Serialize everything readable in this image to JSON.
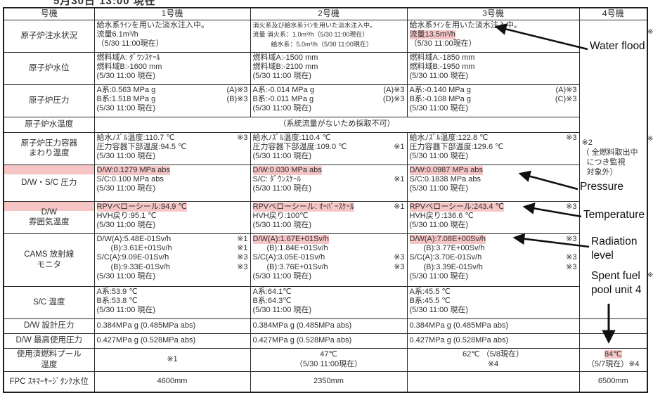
{
  "title": "5月30日 13:00 現在",
  "colors": {
    "highlight": "#f6c6c6",
    "border": "#2a2a2a",
    "arrow": "#101010"
  },
  "header": [
    "号機",
    "1号機",
    "2号機",
    "3号機",
    "4号機"
  ],
  "rows": [
    {
      "id": "injection",
      "label": [
        "原子炉注水状況"
      ],
      "u4": "note",
      "cells": [
        {
          "lines": [
            {
              "t": "給水系ﾗｲﾝを用いた淡水注入中。"
            },
            {
              "t": "流量6.1m³/h"
            },
            {
              "t": "（5/30 11:00現在）"
            }
          ]
        },
        {
          "small": true,
          "lines": [
            {
              "t": "消火系及び給水系ﾗｲﾝを用いた淡水注入中。"
            },
            {
              "t": "流量 消火系：1.0m³/h（5/30 11:00現在）"
            },
            {
              "t": "給水系：5.0m³/h（5/30 11:00現在）",
              "ind": 2
            }
          ]
        },
        {
          "lines": [
            {
              "t": "給水系ﾗｲﾝを用いた淡水注入中。"
            },
            {
              "t": "流量13.5m³/h",
              "hl": true
            },
            {
              "t": "（5/30 11:00現在）"
            }
          ]
        }
      ]
    },
    {
      "id": "water-level",
      "label": [
        "原子炉水位"
      ],
      "cells": [
        {
          "lines": [
            {
              "t": "燃料域A: ﾀﾞｳﾝｽｹｰﾙ"
            },
            {
              "t": "燃料域B:-1600 mm"
            },
            {
              "t": "(5/30 11:00 現在)"
            }
          ]
        },
        {
          "lines": [
            {
              "t": "燃料域A:-1500 mm"
            },
            {
              "t": "燃料域B:-2100 mm"
            },
            {
              "t": "(5/30 11:00 現在)"
            }
          ]
        },
        {
          "lines": [
            {
              "t": "燃料域A:-1850 mm"
            },
            {
              "t": "燃料域B:-1950 mm"
            },
            {
              "t": "(5/30 11:00 現在)"
            }
          ]
        }
      ]
    },
    {
      "id": "reactor-pressure",
      "label": [
        "原子炉圧力"
      ],
      "cells": [
        {
          "lines": [
            {
              "t": "A系:0.563 MPa g",
              "m": "(A)※3"
            },
            {
              "t": "B系:1.518 MPa g",
              "m": "(B)※3"
            },
            {
              "t": "(5/30 11:00 現在)"
            }
          ]
        },
        {
          "lines": [
            {
              "t": "A系:-0.014 MPa g",
              "m": "(A)※3"
            },
            {
              "t": "B系:-0.011 MPa g",
              "m": "(D)※3"
            },
            {
              "t": "(5/30 11:00 現在)"
            }
          ]
        },
        {
          "lines": [
            {
              "t": "A系:-0.140 MPa g",
              "m": "(A)※3"
            },
            {
              "t": "B系:-0.108 MPa g",
              "m": "(C)※3"
            },
            {
              "t": "(5/30 11:00 現在)"
            }
          ]
        }
      ]
    },
    {
      "id": "water-temp",
      "label": [
        "原子炉水温度"
      ],
      "span_text": "（系統流量がないため採取不可）"
    },
    {
      "id": "rpv-temp",
      "label": [
        "原子炉圧力容器",
        "まわり温度"
      ],
      "cells": [
        {
          "lines": [
            {
              "t": "給水ﾉｽﾞﾙ温度:110.7 ℃",
              "m": "※3"
            },
            {
              "t": "圧力容器下部温度:94.5 ℃"
            },
            {
              "t": "(5/30 11:00 現在)"
            }
          ]
        },
        {
          "lines": [
            {
              "t": "給水ﾉｽﾞﾙ温度:110.4 ℃"
            },
            {
              "t": "圧力容器下部温度:109.0 ℃",
              "m": "※1"
            },
            {
              "t": "(5/30 11:00 現在)"
            }
          ]
        },
        {
          "lines": [
            {
              "t": "給水ﾉｽﾞﾙ温度:122.8 ℃",
              "m": "※3"
            },
            {
              "t": "圧力容器下部温度:129.6 ℃"
            },
            {
              "t": "(5/30 11:00 現在)"
            }
          ]
        }
      ]
    },
    {
      "id": "dw-sc-pressure",
      "label": [
        "D/W・S/C 圧力"
      ],
      "stripe": true,
      "cells": [
        {
          "lines": [
            {
              "t": "D/W:0.1279 MPa abs",
              "hl": true
            },
            {
              "t": "S/C:0.100 MPa abs"
            },
            {
              "t": "(5/30 11:00 現在)"
            }
          ]
        },
        {
          "lines": [
            {
              "t": "D/W:0.030 MPa abs",
              "hl": true
            },
            {
              "t": "S/C: ﾀﾞｳﾝｽｹｰﾙ",
              "m": "※1"
            },
            {
              "t": "(5/30 11:00 現在)"
            }
          ]
        },
        {
          "lines": [
            {
              "t": "D/W:0.0987 MPa abs",
              "hl": true
            },
            {
              "t": "S/C:0.1838 MPa abs"
            },
            {
              "t": "(5/30 11:00 現在)"
            }
          ]
        }
      ]
    },
    {
      "id": "dw-atm-temp",
      "label": [
        "D/W",
        "雰囲気温度"
      ],
      "stripe": true,
      "cells": [
        {
          "lines": [
            {
              "t": "RPVベローシール:94.9 ℃",
              "hl": true
            },
            {
              "t": "HVH戻り:95.1 ℃"
            },
            {
              "t": "(5/30 11:00 現在)"
            }
          ]
        },
        {
          "lines": [
            {
              "t": "RPVベローシール: ｵｰﾊﾞｰｽｹｰﾙ",
              "hl": true,
              "m": "※1"
            },
            {
              "t": "HVH戻り:100℃"
            },
            {
              "t": "(5/30 11:00 現在)"
            }
          ]
        },
        {
          "lines": [
            {
              "t": "RPVベローシール:243.4 ℃",
              "hl": true,
              "m": "※3"
            },
            {
              "t": "HVH戻り:136.6 ℃"
            },
            {
              "t": "(5/30 11:00 現在)"
            }
          ]
        }
      ]
    },
    {
      "id": "cams",
      "label": [
        "CAMS 放射線",
        "モニタ"
      ],
      "cells": [
        {
          "lines": [
            {
              "t": "D/W(A):5.48E-01Sv/h",
              "m": "※1"
            },
            {
              "t": "(B):3.61E+01Sv/h",
              "ind": 1,
              "m": "※1"
            },
            {
              "t": "S/C(A):9.09E-01Sv/h",
              "m": "※3"
            },
            {
              "t": "(B):9.33E-01Sv/h",
              "ind": 1,
              "m": "※3"
            },
            {
              "t": "(5/30 11:00 現在)"
            }
          ]
        },
        {
          "lines": [
            {
              "t": "D/W(A):1.67E+01Sv/h",
              "hl": true
            },
            {
              "t": "(B):1.84E+01Sv/h",
              "ind": 1
            },
            {
              "t": "S/C(A):3.05E-01Sv/h",
              "m": "※3"
            },
            {
              "t": "(B):3.76E+01Sv/h",
              "ind": 1,
              "m": "※3"
            },
            {
              "t": "(5/30 11:00 現在)"
            }
          ]
        },
        {
          "lines": [
            {
              "t": "D/W(A):7.08E+00Sv/h",
              "hl": true,
              "m": "※3"
            },
            {
              "t": "(B):3.77E+00Sv/h",
              "ind": 1
            },
            {
              "t": "S/C(A):3.70E-01Sv/h",
              "m": "※3"
            },
            {
              "t": "(B):3.39E-01Sv/h",
              "ind": 1,
              "m": "※3"
            },
            {
              "t": "(5/30 11:00 現在)"
            }
          ]
        }
      ]
    },
    {
      "id": "sc-temp",
      "label": [
        "S/C 温度"
      ],
      "cells": [
        {
          "lines": [
            {
              "t": "A系:53.9 ℃"
            },
            {
              "t": "B系:53.8 ℃"
            },
            {
              "t": "(5/30 11:00 現在)"
            }
          ]
        },
        {
          "lines": [
            {
              "t": "A系:64.1℃"
            },
            {
              "t": "B系:64.3℃"
            },
            {
              "t": "(5/30 11:00 現在)"
            }
          ]
        },
        {
          "lines": [
            {
              "t": "A系:45.5 ℃"
            },
            {
              "t": "B系:45.5 ℃"
            },
            {
              "t": "(5/30 11:00 現在)"
            }
          ]
        }
      ]
    },
    {
      "id": "design-pressure",
      "label": [
        "D/W 設計圧力"
      ],
      "u4": "empty",
      "cells": [
        {
          "vm": true,
          "lines": [
            {
              "t": "0.384MPa g (0.485MPa abs)"
            }
          ]
        },
        {
          "vm": true,
          "lines": [
            {
              "t": "0.384MPa g (0.485MPa abs)"
            }
          ]
        },
        {
          "vm": true,
          "lines": [
            {
              "t": "0.384MPa g (0.485MPa abs)"
            }
          ]
        }
      ]
    },
    {
      "id": "max-pressure",
      "label": [
        "D/W 最高使用圧力"
      ],
      "u4": "empty",
      "cells": [
        {
          "vm": true,
          "lines": [
            {
              "t": "0.427MPa g (0.528MPa abs)"
            }
          ]
        },
        {
          "vm": true,
          "lines": [
            {
              "t": "0.427MPa g (0.528MPa abs)"
            }
          ]
        },
        {
          "vm": true,
          "lines": [
            {
              "t": "0.427MPa g (0.528MPa abs)"
            }
          ]
        }
      ]
    },
    {
      "id": "pool-temp",
      "label": [
        "使用済燃料プール",
        "温度"
      ],
      "u4": "pool",
      "cells": [
        {
          "center": true,
          "lines": [
            {
              "t": "※1"
            }
          ]
        },
        {
          "center": true,
          "lines": [
            {
              "t": "47℃"
            },
            {
              "t": "（5/30 11:00現在）"
            }
          ]
        },
        {
          "center": true,
          "lines": [
            {
              "t": "62℃ （5/8現在）"
            },
            {
              "t": "※4"
            }
          ]
        }
      ]
    },
    {
      "id": "fpc",
      "label": [
        "FPC ｽｷﾏｰｻｰｼﾞﾀﾝｸ水位"
      ],
      "u4": "fpc",
      "cells": [
        {
          "center": true,
          "lines": [
            {
              "t": "4600mm"
            }
          ]
        },
        {
          "center": true,
          "lines": [
            {
              "t": "2350mm"
            }
          ]
        },
        {
          "center": true,
          "lines": [
            {
              "t": ""
            }
          ]
        }
      ]
    }
  ],
  "unit4": {
    "note": [
      "※2",
      "（ 全燃料取出中",
      "につき監視",
      "対象外）"
    ],
    "pool_temp": {
      "value": "84℃",
      "sub": "（5/7現在）※4"
    },
    "fpc": "6500mm"
  },
  "annotations": [
    {
      "id": "water-flood",
      "lines": [
        "Water flood"
      ]
    },
    {
      "id": "pressure",
      "lines": [
        "Pressure"
      ]
    },
    {
      "id": "temperature",
      "lines": [
        "Temperature"
      ]
    },
    {
      "id": "radiation",
      "lines": [
        "Radiation",
        "level"
      ]
    },
    {
      "id": "spent-fuel",
      "lines": [
        "Spent fuel",
        "pool unit 4"
      ]
    }
  ],
  "edge_fragments": [
    "※",
    "※",
    "※"
  ]
}
